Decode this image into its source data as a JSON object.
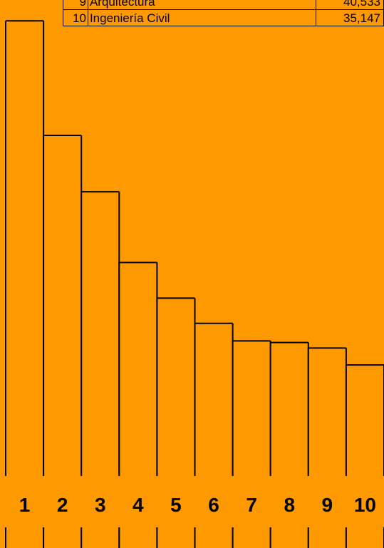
{
  "chart_data": {
    "type": "bar",
    "categories": [
      "1",
      "2",
      "3",
      "4",
      "5",
      "6",
      "7",
      "8",
      "9",
      "10"
    ],
    "values": [
      96.2,
      75.3,
      65.0,
      52.1,
      45.6,
      41.0,
      37.8,
      37.5,
      36.5,
      33.4
    ],
    "ylim": [
      0,
      100
    ],
    "grid": false,
    "table": {
      "rows": [
        {
          "rank": "9",
          "name": "Arquitectura",
          "amount": "40,533"
        },
        {
          "rank": "10",
          "name": "Ingeniería Civil",
          "amount": "35,147"
        }
      ]
    }
  },
  "colors": {
    "background": "#ff9900",
    "bar_fill": "#ff9900",
    "bar_stroke": "#000000"
  }
}
